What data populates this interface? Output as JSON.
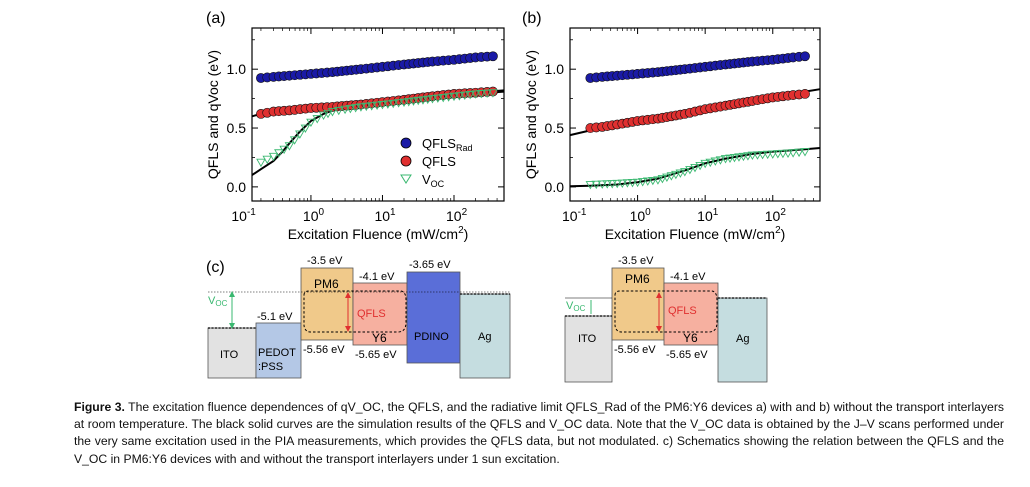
{
  "panels": {
    "a": {
      "label": "(a)",
      "chart_data": {
        "type": "scatter",
        "xlabel": "Excitation Fluence (mW/cm²)",
        "ylabel": "QFLS and qVoc (eV)",
        "xscale": "log",
        "xlim": [
          0.15,
          500
        ],
        "ylim": [
          -0.12,
          1.35
        ],
        "yticks": [
          "0.0",
          "0.5",
          "1.0"
        ],
        "xtick_exponents": [
          "-1",
          "0",
          "1",
          "2"
        ],
        "legend": "right-middle",
        "series": [
          {
            "name": "QFLS_Rad",
            "marker": "circle",
            "color": "#1a1aa6",
            "x": [
              0.2,
              0.3,
              0.5,
              1,
              2,
              5,
              10,
              20,
              50,
              100,
              200,
              350
            ],
            "y": [
              0.925,
              0.935,
              0.945,
              0.96,
              0.975,
              1.0,
              1.02,
              1.04,
              1.065,
              1.08,
              1.1,
              1.11
            ]
          },
          {
            "name": "QFLS",
            "marker": "circle",
            "color": "#e03030",
            "x": [
              0.2,
              0.3,
              0.5,
              1,
              2,
              5,
              10,
              20,
              50,
              100,
              200,
              350
            ],
            "y": [
              0.62,
              0.64,
              0.65,
              0.67,
              0.68,
              0.7,
              0.72,
              0.74,
              0.77,
              0.79,
              0.8,
              0.81
            ]
          },
          {
            "name": "V_OC",
            "marker": "triangle-down",
            "color": "#3ab870",
            "x": [
              0.2,
              0.3,
              0.5,
              0.7,
              1,
              1.5,
              2,
              3,
              5,
              10,
              20,
              50,
              100,
              200,
              350
            ],
            "y": [
              0.21,
              0.26,
              0.35,
              0.45,
              0.55,
              0.61,
              0.64,
              0.66,
              0.68,
              0.7,
              0.72,
              0.75,
              0.77,
              0.79,
              0.8
            ]
          }
        ],
        "sim_curves": [
          {
            "x": [
              0.15,
              0.2,
              0.3,
              0.5,
              1,
              2,
              5,
              10,
              30,
              100,
              300,
              500
            ],
            "y": [
              0.6,
              0.62,
              0.64,
              0.66,
              0.68,
              0.69,
              0.7,
              0.72,
              0.75,
              0.78,
              0.81,
              0.82
            ]
          },
          {
            "x": [
              0.15,
              0.2,
              0.3,
              0.4,
              0.5,
              0.7,
              1,
              1.5,
              2,
              3,
              5,
              10,
              30,
              100,
              300,
              500
            ],
            "y": [
              0.1,
              0.15,
              0.22,
              0.3,
              0.37,
              0.47,
              0.56,
              0.62,
              0.65,
              0.67,
              0.69,
              0.71,
              0.74,
              0.77,
              0.8,
              0.81
            ]
          }
        ]
      }
    },
    "b": {
      "label": "(b)",
      "chart_data": {
        "type": "scatter",
        "xlabel": "Excitation Fluence (mW/cm²)",
        "ylabel": "QFLS and qVoc (eV)",
        "xscale": "log",
        "xlim": [
          0.1,
          500
        ],
        "ylim": [
          -0.12,
          1.35
        ],
        "yticks": [
          "0.0",
          "0.5",
          "1.0"
        ],
        "xtick_exponents": [
          "-1",
          "0",
          "1",
          "2"
        ],
        "series": [
          {
            "name": "QFLS_Rad",
            "marker": "circle",
            "color": "#1a1aa6",
            "x": [
              0.2,
              0.3,
              0.5,
              1,
              2,
              5,
              10,
              20,
              50,
              100,
              200,
              300
            ],
            "y": [
              0.925,
              0.935,
              0.945,
              0.96,
              0.975,
              1.0,
              1.02,
              1.04,
              1.065,
              1.08,
              1.1,
              1.11
            ]
          },
          {
            "name": "QFLS",
            "marker": "circle",
            "color": "#e03030",
            "x": [
              0.2,
              0.3,
              0.5,
              1,
              2,
              5,
              10,
              20,
              50,
              100,
              200,
              300
            ],
            "y": [
              0.5,
              0.51,
              0.53,
              0.56,
              0.58,
              0.62,
              0.66,
              0.69,
              0.73,
              0.76,
              0.78,
              0.79
            ]
          },
          {
            "name": "V_OC",
            "marker": "triangle-down",
            "color": "#3ab870",
            "x": [
              0.2,
              0.3,
              0.5,
              1,
              2,
              5,
              10,
              20,
              50,
              100,
              200,
              300
            ],
            "y": [
              0.02,
              0.025,
              0.03,
              0.04,
              0.06,
              0.13,
              0.2,
              0.24,
              0.27,
              0.28,
              0.29,
              0.3
            ]
          }
        ],
        "sim_curves": [
          {
            "x": [
              0.1,
              0.2,
              0.5,
              1,
              2,
              5,
              10,
              30,
              100,
              300,
              500
            ],
            "y": [
              0.44,
              0.48,
              0.52,
              0.55,
              0.58,
              0.62,
              0.66,
              0.71,
              0.76,
              0.81,
              0.83
            ]
          },
          {
            "x": [
              0.1,
              0.2,
              0.5,
              1,
              2,
              3,
              5,
              10,
              20,
              50,
              100,
              300,
              500
            ],
            "y": [
              0.005,
              0.01,
              0.02,
              0.04,
              0.07,
              0.1,
              0.14,
              0.2,
              0.24,
              0.28,
              0.3,
              0.32,
              0.33
            ]
          }
        ]
      }
    },
    "c": {
      "label": "(c)",
      "left": {
        "voc_label": "V",
        "voc_sub": "OC",
        "qfls_label": "QFLS",
        "layers": [
          {
            "name": "ITO",
            "color": "#e2e2e2",
            "energy_top": ""
          },
          {
            "name": "PEDOT",
            "name2": ":PSS",
            "color": "#b4c8e6",
            "energy_top": "-5.1 eV"
          },
          {
            "name": "PM6",
            "color": "#f0c98a",
            "energy_top": "-3.5 eV",
            "energy_bottom": "-5.56 eV"
          },
          {
            "name": "Y6",
            "color": "#f6b0a0",
            "energy_top": "-4.1 eV",
            "energy_bottom": "-5.65 eV"
          },
          {
            "name": "PDINO",
            "color": "#5a6ed8",
            "energy_top": "-3.65 eV"
          },
          {
            "name": "Ag",
            "color": "#c5dde0",
            "energy_top": ""
          }
        ]
      },
      "right": {
        "voc_label": "V",
        "voc_sub": "OC",
        "qfls_label": "QFLS",
        "layers": [
          {
            "name": "ITO",
            "color": "#e2e2e2"
          },
          {
            "name": "PM6",
            "color": "#f0c98a",
            "energy_top": "-3.5 eV",
            "energy_bottom": "-5.56 eV"
          },
          {
            "name": "Y6",
            "color": "#f6b0a0",
            "energy_top": "-4.1 eV",
            "energy_bottom": "-5.65 eV"
          },
          {
            "name": "Ag",
            "color": "#c5dde0"
          }
        ]
      }
    }
  },
  "legend": {
    "qfls_rad": "QFLS",
    "qfls_rad_sub": "Rad",
    "qfls": "QFLS",
    "voc": "V",
    "voc_sub": "OC"
  },
  "axis_text": {
    "ylabel": "QFLS and qVoc (eV)",
    "xlabel_main": "Excitation Fluence (mW/cm",
    "xlabel_sup": "2",
    "xlabel_end": ")",
    "tick_base": "10"
  },
  "caption": {
    "lead": "Figure 3.",
    "text": " The excitation fluence dependences of qV_OC, the QFLS, and the radiative limit QFLS_Rad of the PM6:Y6 devices a) with and b) without the transport interlayers at room temperature. The black solid curves are the simulation results of the QFLS and V_OC data. Note that the V_OC data is obtained by the J–V scans performed under the very same excitation used in the PIA measurements, which provides the QFLS data, but not modulated. c) Schematics showing the relation between the QFLS and the V_OC in PM6:Y6 devices with and without the transport interlayers under 1 sun excitation."
  }
}
